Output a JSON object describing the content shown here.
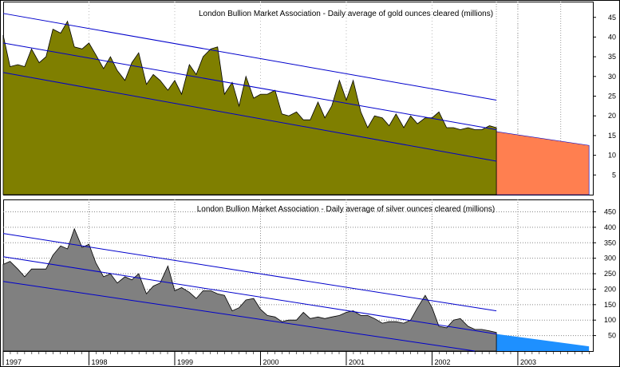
{
  "chart_data": [
    {
      "type": "area",
      "title": "London Bullion Market Association - Daily average of gold ounces cleared (millions)",
      "ylim": [
        0,
        49
      ],
      "yticks": [
        5,
        10,
        15,
        20,
        25,
        30,
        35,
        40,
        45
      ],
      "grid": false,
      "x": [
        1997.0,
        1997.08,
        1997.17,
        1997.25,
        1997.33,
        1997.42,
        1997.5,
        1997.58,
        1997.67,
        1997.75,
        1997.83,
        1997.92,
        1998.0,
        1998.08,
        1998.17,
        1998.25,
        1998.33,
        1998.42,
        1998.5,
        1998.58,
        1998.67,
        1998.75,
        1998.83,
        1998.92,
        1999.0,
        1999.08,
        1999.17,
        1999.25,
        1999.33,
        1999.42,
        1999.5,
        1999.58,
        1999.67,
        1999.75,
        1999.83,
        1999.92,
        2000.0,
        2000.08,
        2000.17,
        2000.25,
        2000.33,
        2000.42,
        2000.5,
        2000.58,
        2000.67,
        2000.75,
        2000.83,
        2000.92,
        2001.0,
        2001.08,
        2001.17,
        2001.25,
        2001.33,
        2001.42,
        2001.5,
        2001.58,
        2001.67,
        2001.75,
        2001.83,
        2001.92,
        2002.0,
        2002.08,
        2002.17,
        2002.25,
        2002.33,
        2002.42,
        2002.5,
        2002.58,
        2002.67,
        2002.75
      ],
      "series": [
        {
          "color": "#7f7f00",
          "values": [
            40.5,
            32.5,
            33.0,
            32.5,
            37.0,
            33.5,
            35.0,
            42.0,
            41.0,
            44.0,
            37.5,
            37.0,
            38.5,
            35.5,
            32.0,
            35.0,
            31.5,
            29.0,
            33.5,
            36.0,
            28.0,
            30.5,
            29.0,
            26.5,
            29.0,
            25.5,
            33.0,
            30.5,
            35.0,
            37.0,
            37.5,
            25.5,
            28.5,
            22.5,
            30.0,
            24.5,
            25.5,
            25.5,
            26.5,
            20.5,
            20.0,
            21.0,
            19.0,
            19.0,
            23.5,
            19.5,
            22.5,
            29.0,
            24.0,
            29.0,
            21.0,
            17.0,
            20.0,
            19.5,
            17.5,
            20.5,
            17.0,
            20.0,
            18.0,
            19.5,
            19.5,
            21.0,
            17.0,
            17.0,
            16.5,
            17.0,
            16.5,
            16.5,
            17.5,
            17.0
          ]
        }
      ],
      "forecast": {
        "from": [
          2002.75,
          16
        ],
        "to": [
          2003.83,
          12.5
        ],
        "color": "#ff7f50"
      },
      "trend_lines": [
        {
          "color": "#0000cc",
          "from": [
            1997.0,
            46.0
          ],
          "to": [
            2002.75,
            24.0
          ]
        },
        {
          "color": "#0000cc",
          "from": [
            1997.0,
            38.5
          ],
          "to": [
            2002.75,
            16.5
          ]
        },
        {
          "color": "#0000cc",
          "from": [
            1997.0,
            31.0
          ],
          "to": [
            2002.75,
            8.5
          ]
        }
      ]
    },
    {
      "type": "area",
      "title": "London Bullion Market Association - Daily average of silver ounces cleared (millions)",
      "ylim": [
        0,
        490
      ],
      "yticks": [
        50,
        100,
        150,
        200,
        250,
        300,
        350,
        400,
        450
      ],
      "xticks": [
        "1997",
        "1998",
        "1999",
        "2000",
        "2001",
        "2002",
        "2003"
      ],
      "grid": true,
      "x": [
        1997.0,
        1997.08,
        1997.17,
        1997.25,
        1997.33,
        1997.42,
        1997.5,
        1997.58,
        1997.67,
        1997.75,
        1997.83,
        1997.92,
        1998.0,
        1998.08,
        1998.17,
        1998.25,
        1998.33,
        1998.42,
        1998.5,
        1998.58,
        1998.67,
        1998.75,
        1998.83,
        1998.92,
        1999.0,
        1999.08,
        1999.17,
        1999.25,
        1999.33,
        1999.42,
        1999.5,
        1999.58,
        1999.67,
        1999.75,
        1999.83,
        1999.92,
        2000.0,
        2000.08,
        2000.17,
        2000.25,
        2000.33,
        2000.42,
        2000.5,
        2000.58,
        2000.67,
        2000.75,
        2000.83,
        2000.92,
        2001.0,
        2001.08,
        2001.17,
        2001.25,
        2001.33,
        2001.42,
        2001.5,
        2001.58,
        2001.67,
        2001.75,
        2001.83,
        2001.92,
        2002.0,
        2002.08,
        2002.17,
        2002.25,
        2002.33,
        2002.42,
        2002.5,
        2002.58,
        2002.67,
        2002.75
      ],
      "series": [
        {
          "color": "#808080",
          "values": [
            280,
            290,
            265,
            240,
            265,
            265,
            265,
            310,
            340,
            330,
            395,
            335,
            345,
            285,
            240,
            250,
            220,
            240,
            230,
            250,
            185,
            210,
            220,
            275,
            195,
            205,
            190,
            170,
            195,
            195,
            185,
            180,
            130,
            140,
            165,
            170,
            135,
            115,
            110,
            95,
            100,
            100,
            125,
            105,
            110,
            105,
            110,
            115,
            125,
            130,
            115,
            115,
            105,
            90,
            95,
            95,
            90,
            100,
            140,
            180,
            140,
            80,
            75,
            100,
            105,
            80,
            70,
            70,
            65,
            60
          ]
        }
      ],
      "forecast": {
        "from": [
          2002.75,
          55
        ],
        "to": [
          2003.83,
          15
        ],
        "color": "#1e90ff"
      },
      "trend_lines": [
        {
          "color": "#0000cc",
          "from": [
            1997.0,
            380
          ],
          "to": [
            2002.75,
            130
          ]
        },
        {
          "color": "#0000cc",
          "from": [
            1997.0,
            305
          ],
          "to": [
            2002.75,
            55
          ]
        },
        {
          "color": "#0000cc",
          "from": [
            1997.0,
            225
          ],
          "to": [
            2002.5,
            0
          ]
        }
      ]
    }
  ]
}
